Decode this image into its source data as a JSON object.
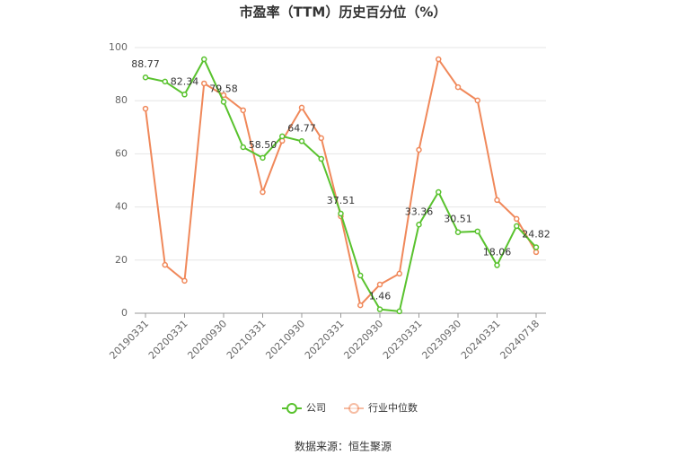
{
  "chart_data": {
    "type": "line",
    "title": "市盈率（TTM）历史百分位（%）",
    "source": "数据来源：恒生聚源",
    "categories": [
      "20190331",
      null,
      "20200331",
      null,
      "20200930",
      null,
      "20210331",
      null,
      "20210930",
      null,
      "20220331",
      null,
      "20220930",
      null,
      "20230331",
      null,
      "20230930",
      null,
      "20240331",
      null,
      "20240718"
    ],
    "series": [
      {
        "name": "公司",
        "color": "#59c22e",
        "values": [
          88.77,
          87.2,
          82.34,
          95.6,
          79.58,
          62.5,
          58.5,
          66.6,
          64.77,
          58.1,
          37.51,
          14.2,
          1.46,
          0.7,
          33.36,
          45.6,
          30.51,
          30.8,
          18.06,
          32.8,
          24.82
        ],
        "value_labels": [
          "88.77",
          null,
          "82.34",
          null,
          "79.58",
          null,
          "58.50",
          null,
          "64.77",
          null,
          "37.51",
          null,
          "1.46",
          null,
          "33.36",
          null,
          "30.51",
          null,
          "18.06",
          null,
          "24.82"
        ]
      },
      {
        "name": "行业中位数",
        "color": "#f0885a",
        "values": [
          77.0,
          18.2,
          12.2,
          86.5,
          82.1,
          76.4,
          45.6,
          64.9,
          77.4,
          65.9,
          36.5,
          3.0,
          10.8,
          14.9,
          61.5,
          95.6,
          85.1,
          80.1,
          42.6,
          35.5,
          23.0
        ]
      }
    ],
    "ylim": [
      0,
      100
    ],
    "yticks": [
      0,
      20,
      40,
      60,
      80,
      100
    ],
    "grid": true,
    "legend": "bottom"
  }
}
